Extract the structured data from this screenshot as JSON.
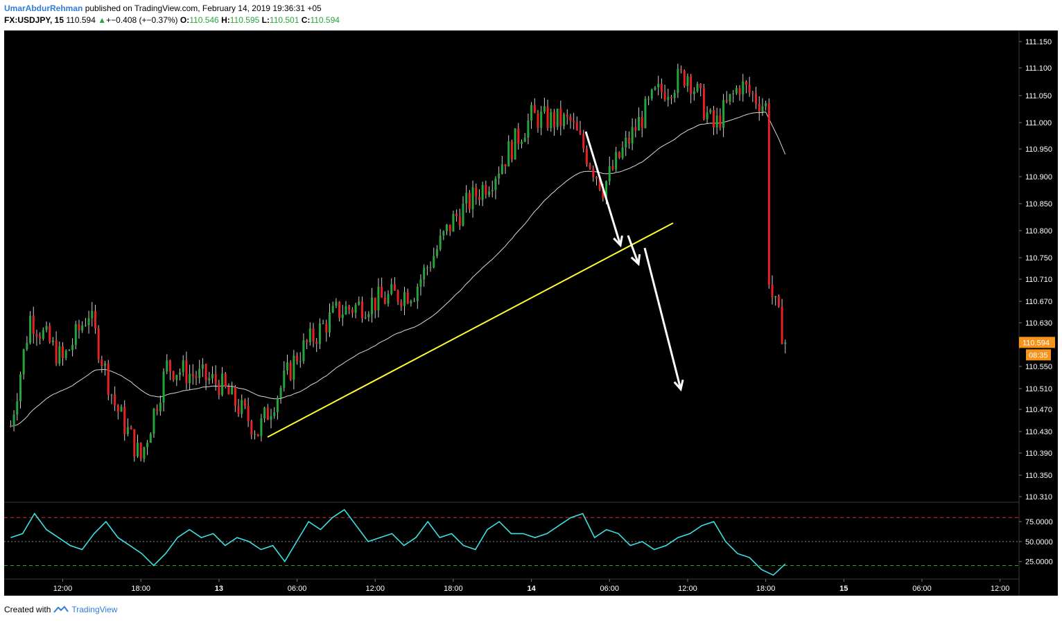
{
  "header": {
    "author": "UmarAbdurRehman",
    "published": "published on TradingView.com, February 14, 2019 19:36:31 +05",
    "symbol": "FX:USDJPY, 15",
    "last": "110.594",
    "change_arrow": "▲",
    "change": "+−0.408 (+−0.37%)",
    "o_label": "O:",
    "o_value": "110.546",
    "h_label": "H:",
    "h_value": "110.595",
    "l_label": "L:",
    "l_value": "110.501",
    "c_label": "C:",
    "c_value": "110.594"
  },
  "footer": {
    "created": "Created with",
    "brand": "TradingView"
  },
  "colors": {
    "bg": "#000000",
    "up": "#26a63a",
    "down": "#e52321",
    "ma": "#d9d9d9",
    "rsi": "#3ae2e2",
    "trend": "#ffff33",
    "arrow": "#ffffff",
    "price_tag": "#f7931a"
  },
  "chart_data": [
    {
      "type": "candlestick",
      "symbol": "FX:USDJPY",
      "interval": "15",
      "price_axis_ticks": [
        "111.150",
        "111.100",
        "111.050",
        "111.000",
        "110.950",
        "110.900",
        "110.850",
        "110.800",
        "110.750",
        "110.710",
        "110.670",
        "110.630",
        "110.550",
        "110.510",
        "110.470",
        "110.430",
        "110.390",
        "110.350",
        "110.310"
      ],
      "time_axis_ticks": [
        "12:00",
        "18:00",
        "13",
        "06:00",
        "12:00",
        "18:00",
        "14",
        "06:00",
        "12:00",
        "18:00",
        "15",
        "06:00",
        "12:00"
      ],
      "current_price_label": "110.594",
      "countdown_label": "08:35",
      "overlays": [
        "moving average (grey)",
        "ascending trendline (yellow)",
        "three white arrows pointing down"
      ],
      "ohlc_path_approx": [
        {
          "t": "Feb 12 08:00",
          "price": 110.44
        },
        {
          "t": "Feb 12 09:30",
          "price": 110.64
        },
        {
          "t": "Feb 12 12:00",
          "price": 110.56
        },
        {
          "t": "Feb 12 14:00",
          "price": 110.65
        },
        {
          "t": "Feb 12 16:00",
          "price": 110.48
        },
        {
          "t": "Feb 12 18:00",
          "price": 110.38
        },
        {
          "t": "Feb 12 20:00",
          "price": 110.55
        },
        {
          "t": "Feb 13 00:00",
          "price": 110.52
        },
        {
          "t": "Feb 13 03:00",
          "price": 110.43
        },
        {
          "t": "Feb 13 06:00",
          "price": 110.57
        },
        {
          "t": "Feb 13 09:00",
          "price": 110.65
        },
        {
          "t": "Feb 13 12:00",
          "price": 110.67
        },
        {
          "t": "Feb 13 15:00",
          "price": 110.69
        },
        {
          "t": "Feb 13 18:00",
          "price": 110.82
        },
        {
          "t": "Feb 13 21:00",
          "price": 110.9
        },
        {
          "t": "Feb 14 00:00",
          "price": 111.01
        },
        {
          "t": "Feb 14 03:00",
          "price": 111.0
        },
        {
          "t": "Feb 14 05:30",
          "price": 110.88
        },
        {
          "t": "Feb 14 08:00",
          "price": 110.99
        },
        {
          "t": "Feb 14 09:30",
          "price": 111.05
        },
        {
          "t": "Feb 14 12:00",
          "price": 111.09
        },
        {
          "t": "Feb 14 14:00",
          "price": 110.99
        },
        {
          "t": "Feb 14 16:00",
          "price": 111.07
        },
        {
          "t": "Feb 14 18:00",
          "price": 111.03
        },
        {
          "t": "Feb 14 18:15",
          "price": 110.7
        },
        {
          "t": "Feb 14 19:30",
          "price": 110.594
        }
      ]
    },
    {
      "type": "line",
      "name": "RSI",
      "y_axis_ticks": [
        "75.0000",
        "50.0000",
        "25.0000"
      ],
      "levels": {
        "upper": 80,
        "middle": 50,
        "lower": 20
      },
      "values_approx": [
        55,
        60,
        85,
        65,
        55,
        45,
        40,
        60,
        75,
        55,
        45,
        35,
        20,
        35,
        55,
        65,
        55,
        60,
        45,
        55,
        50,
        40,
        45,
        25,
        50,
        75,
        65,
        80,
        90,
        70,
        50,
        55,
        60,
        45,
        55,
        75,
        55,
        60,
        45,
        40,
        65,
        75,
        60,
        60,
        55,
        60,
        70,
        80,
        85,
        55,
        65,
        60,
        45,
        50,
        40,
        45,
        55,
        60,
        70,
        75,
        50,
        35,
        30,
        15,
        8,
        22
      ]
    }
  ]
}
